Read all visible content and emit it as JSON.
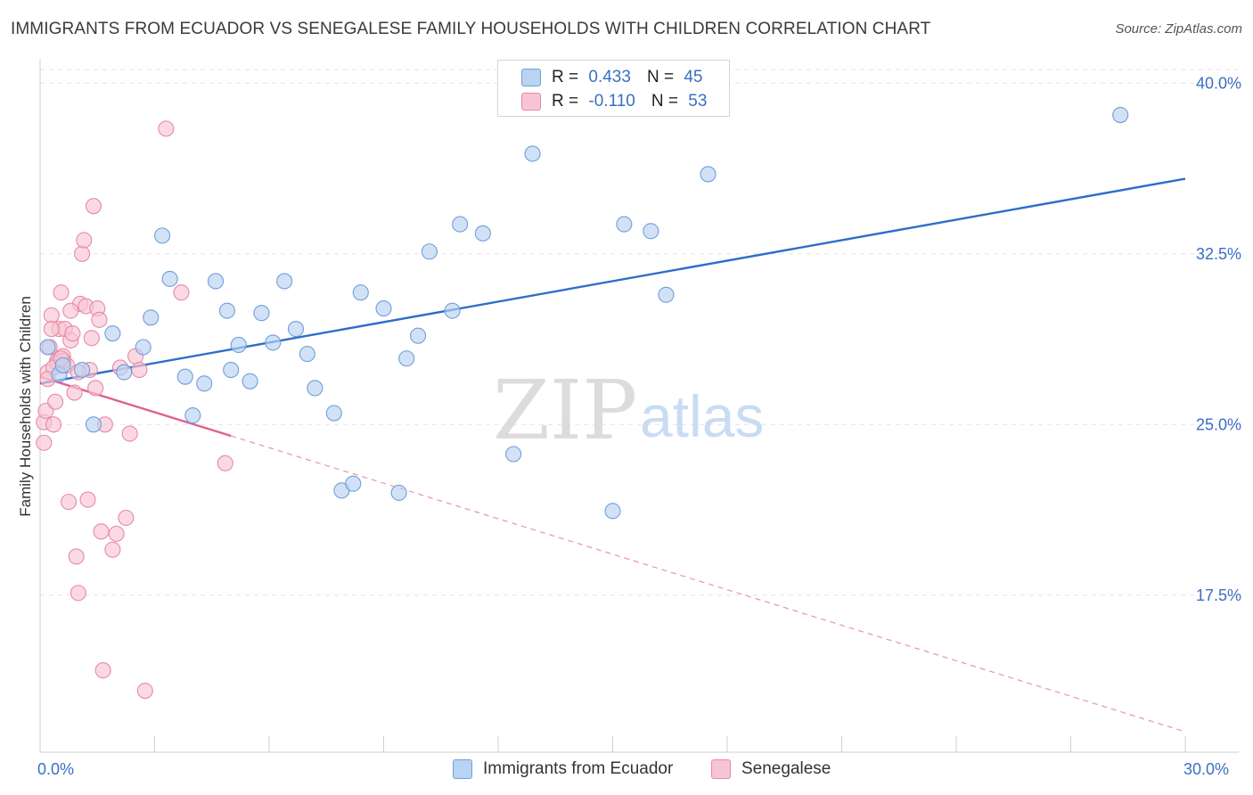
{
  "header": {
    "title": "IMMIGRANTS FROM ECUADOR VS SENEGALESE FAMILY HOUSEHOLDS WITH CHILDREN CORRELATION CHART",
    "source": "Source: ZipAtlas.com"
  },
  "legend": {
    "rows": [
      {
        "r_label": "R =",
        "r_value": "0.433",
        "n_label": "N =",
        "n_value": "45"
      },
      {
        "r_label": "R =",
        "r_value": "-0.110",
        "n_label": "N =",
        "n_value": "53"
      }
    ]
  },
  "watermark": {
    "zip": "ZIP",
    "atlas": "atlas"
  },
  "colors": {
    "ecuador_fill": "#b9d3f3",
    "ecuador_stroke": "#6f9fd8",
    "ecuador_line": "#2e6ec9",
    "senegal_fill": "#f7c4d3",
    "senegal_stroke": "#e889a8",
    "senegal_line": "#e0628c",
    "tick_label": "#3a6fc4"
  },
  "chart_data": {
    "type": "scatter",
    "title": "IMMIGRANTS FROM ECUADOR VS SENEGALESE FAMILY HOUSEHOLDS WITH CHILDREN CORRELATION CHART",
    "xlabel": "",
    "ylabel": "Family Households with Children",
    "xlim": [
      0,
      30
    ],
    "ylim": [
      10.6,
      41.5
    ],
    "x_tick_labels": [
      "0.0%",
      "30.0%"
    ],
    "y_ticks": [
      17.5,
      25.0,
      32.5,
      40.0
    ],
    "y_tick_labels": [
      "17.5%",
      "25.0%",
      "32.5%",
      "40.0%"
    ],
    "grid": true,
    "series": [
      {
        "name": "Immigrants from Ecuador",
        "trend": {
          "x": [
            0,
            30
          ],
          "y": [
            26.8,
            35.8
          ],
          "dashed_extension": false
        },
        "points": [
          [
            0.2,
            28.4
          ],
          [
            0.5,
            27.2
          ],
          [
            1.1,
            27.4
          ],
          [
            1.9,
            29.0
          ],
          [
            2.2,
            27.3
          ],
          [
            2.7,
            28.4
          ],
          [
            2.9,
            29.7
          ],
          [
            3.2,
            33.3
          ],
          [
            3.4,
            31.4
          ],
          [
            3.8,
            27.1
          ],
          [
            4.0,
            25.4
          ],
          [
            4.3,
            26.8
          ],
          [
            4.6,
            31.3
          ],
          [
            4.9,
            30.0
          ],
          [
            5.2,
            28.5
          ],
          [
            5.5,
            26.9
          ],
          [
            5.8,
            29.9
          ],
          [
            6.1,
            28.6
          ],
          [
            6.4,
            31.3
          ],
          [
            6.7,
            29.2
          ],
          [
            7.0,
            28.1
          ],
          [
            7.2,
            26.6
          ],
          [
            7.7,
            25.5
          ],
          [
            7.9,
            22.1
          ],
          [
            8.2,
            22.4
          ],
          [
            8.4,
            30.8
          ],
          [
            9.0,
            30.1
          ],
          [
            9.4,
            22.0
          ],
          [
            9.6,
            27.9
          ],
          [
            9.9,
            28.9
          ],
          [
            10.2,
            32.6
          ],
          [
            10.8,
            30.0
          ],
          [
            11.0,
            33.8
          ],
          [
            11.6,
            33.4
          ],
          [
            12.4,
            23.7
          ],
          [
            12.9,
            36.9
          ],
          [
            15.0,
            21.2
          ],
          [
            15.3,
            33.8
          ],
          [
            16.0,
            33.5
          ],
          [
            16.4,
            30.7
          ],
          [
            17.5,
            36.0
          ],
          [
            28.3,
            38.6
          ],
          [
            1.4,
            25.0
          ],
          [
            0.6,
            27.6
          ],
          [
            5.0,
            27.4
          ]
        ]
      },
      {
        "name": "Senegalese",
        "trend": {
          "x": [
            0,
            5.0
          ],
          "y": [
            27.1,
            24.5
          ],
          "dashed_extension": true,
          "dashed_to": [
            30,
            11.5
          ]
        },
        "points": [
          [
            0.1,
            24.2
          ],
          [
            0.1,
            25.1
          ],
          [
            0.15,
            25.6
          ],
          [
            0.2,
            27.3
          ],
          [
            0.25,
            28.4
          ],
          [
            0.3,
            29.8
          ],
          [
            0.35,
            25.0
          ],
          [
            0.4,
            26.0
          ],
          [
            0.45,
            27.8
          ],
          [
            0.5,
            29.2
          ],
          [
            0.55,
            30.8
          ],
          [
            0.6,
            28.0
          ],
          [
            0.65,
            29.2
          ],
          [
            0.7,
            27.6
          ],
          [
            0.75,
            21.6
          ],
          [
            0.8,
            28.7
          ],
          [
            0.85,
            29.0
          ],
          [
            0.9,
            26.4
          ],
          [
            0.95,
            19.2
          ],
          [
            1.0,
            17.6
          ],
          [
            1.05,
            30.3
          ],
          [
            1.1,
            32.5
          ],
          [
            1.15,
            33.1
          ],
          [
            1.2,
            30.2
          ],
          [
            1.25,
            21.7
          ],
          [
            1.3,
            27.4
          ],
          [
            1.35,
            28.8
          ],
          [
            1.4,
            34.6
          ],
          [
            1.45,
            26.6
          ],
          [
            1.5,
            30.1
          ],
          [
            1.55,
            29.6
          ],
          [
            1.6,
            20.3
          ],
          [
            1.65,
            14.2
          ],
          [
            1.7,
            25.0
          ],
          [
            1.9,
            19.5
          ],
          [
            2.0,
            20.2
          ],
          [
            2.1,
            27.5
          ],
          [
            2.25,
            20.9
          ],
          [
            2.35,
            24.6
          ],
          [
            2.5,
            28.0
          ],
          [
            2.6,
            27.4
          ],
          [
            2.75,
            13.3
          ],
          [
            3.3,
            38.0
          ],
          [
            3.7,
            30.8
          ],
          [
            4.85,
            23.3
          ],
          [
            0.45,
            27.7
          ],
          [
            0.35,
            27.5
          ],
          [
            0.6,
            27.8
          ],
          [
            0.2,
            27.0
          ],
          [
            0.8,
            30.0
          ],
          [
            0.3,
            29.2
          ],
          [
            0.55,
            27.9
          ],
          [
            1.0,
            27.3
          ]
        ]
      }
    ]
  },
  "bottom_legend": {
    "items": [
      {
        "label": "Immigrants from Ecuador"
      },
      {
        "label": "Senegalese"
      }
    ]
  }
}
